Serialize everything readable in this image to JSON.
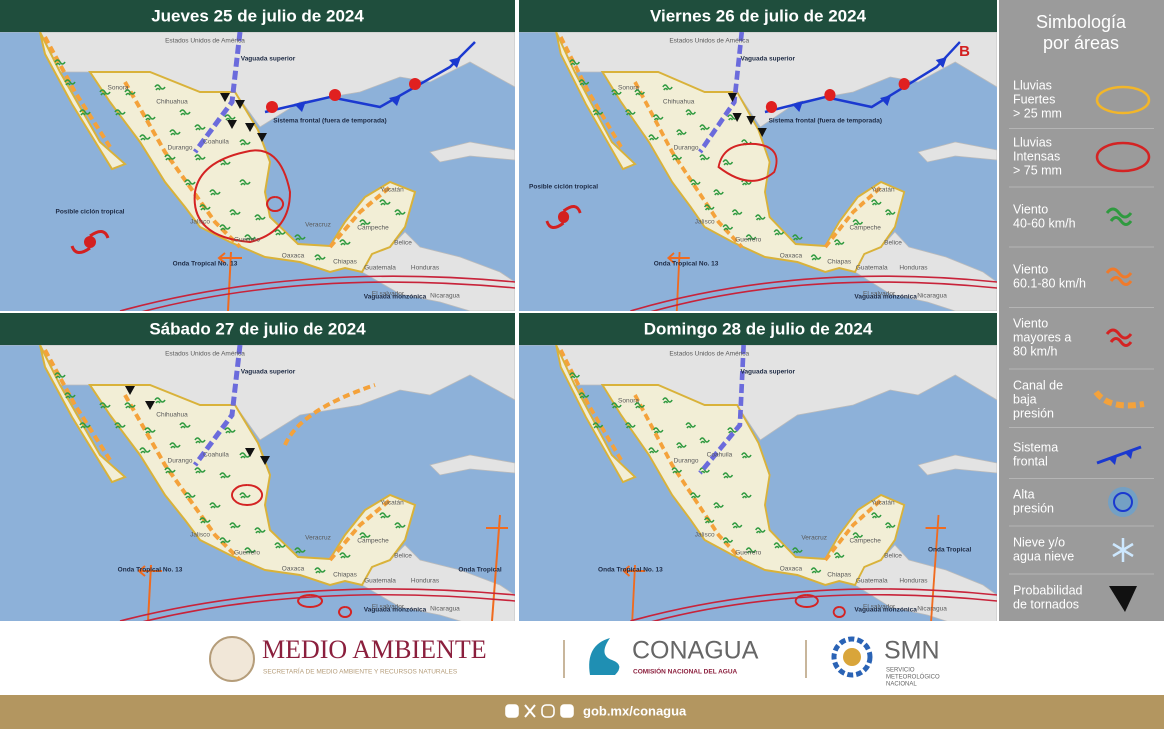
{
  "panels": [
    {
      "title": "Jueves 25 de julio de 2024",
      "labels": {
        "usa": "Estados Unidos de América",
        "vaguada_superior": "Vaguada superior",
        "sistema_frontal": "Sistema frontal (fuera de temporada)",
        "ciclon": "Posible ciclón tropical",
        "onda": "Onda Tropical No. 13",
        "vaguada_monzonica": "Vaguada monzónica",
        "sonora": "Sonora",
        "chihuahua": "Chihuahua",
        "coahuila": "Coahuila",
        "durango": "Durango",
        "jalisco": "Jalisco",
        "guerrero": "Guerrero",
        "oaxaca": "Oaxaca",
        "chiapas": "Chiapas",
        "veracruz": "Veracruz",
        "yucatan": "Yucatán",
        "campeche": "Campeche",
        "belice": "Belice",
        "guatemala": "Guatemala",
        "honduras": "Honduras",
        "el_salvador": "El salvador",
        "nicaragua": "Nicaragua"
      }
    },
    {
      "title": "Viernes 26 de julio de 2024",
      "labels": {
        "usa": "Estados Unidos de América",
        "vaguada_superior": "Vaguada superior",
        "sistema_frontal": "Sistema frontal (fuera de temporada)",
        "ciclon": "Posible ciclón tropical",
        "b": "B",
        "onda": "Onda Tropical No. 13",
        "vaguada_monzonica": "Vaguada monzónica",
        "sonora": "Sonora",
        "chihuahua": "Chihuahua",
        "durango": "Durango",
        "jalisco": "Jalisco",
        "guerrero": "Guerrero",
        "oaxaca": "Oaxaca",
        "chiapas": "Chiapas",
        "yucatan": "Yucatán",
        "campeche": "Campeche",
        "belice": "Belice",
        "guatemala": "Guatemala",
        "honduras": "Honduras",
        "el_salvador": "El salvador",
        "nicaragua": "Nicaragua"
      }
    },
    {
      "title": "Sábado 27 de julio de 2024",
      "labels": {
        "usa": "Estados Unidos de América",
        "vaguada_superior": "Vaguada superior",
        "onda": "Onda Tropical No. 13",
        "onda_east": "Onda Tropical",
        "vaguada_monzonica": "Vaguada monzónica",
        "chihuahua": "Chihuahua",
        "coahuila": "Coahuila",
        "durango": "Durango",
        "jalisco": "Jalisco",
        "guerrero": "Guerrero",
        "oaxaca": "Oaxaca",
        "chiapas": "Chiapas",
        "veracruz": "Veracruz",
        "yucatan": "Yucatán",
        "campeche": "Campeche",
        "belice": "Belice",
        "guatemala": "Guatemala",
        "honduras": "Honduras",
        "el_salvador": "El salvador",
        "nicaragua": "Nicaragua"
      }
    },
    {
      "title": "Domingo 28 de julio de 2024",
      "labels": {
        "usa": "Estados Unidos de América",
        "vaguada_superior": "Vaguada superior",
        "onda": "Onda Tropical No. 13",
        "onda_east": "Onda Tropical",
        "vaguada_monzonica": "Vaguada monzónica",
        "sonora": "Sonora",
        "coahuila": "Coahuila",
        "durango": "Durango",
        "jalisco": "Jalisco",
        "guerrero": "Guerrero",
        "oaxaca": "Oaxaca",
        "chiapas": "Chiapas",
        "veracruz": "Veracruz",
        "yucatan": "Yucatán",
        "campeche": "Campeche",
        "belice": "Belice",
        "guatemala": "Guatemala",
        "honduras": "Honduras",
        "el_salvador": "El salvador",
        "nicaragua": "Nicaragua"
      }
    }
  ],
  "legend": {
    "title": [
      "Simbología",
      "por áreas"
    ],
    "items": [
      [
        "Lluvias",
        "Fuertes",
        "> 25 mm"
      ],
      [
        "Lluvias",
        "Intensas",
        "> 75 mm"
      ],
      [
        "Viento",
        "40-60 km/h"
      ],
      [
        "Viento",
        "60.1-80 km/h"
      ],
      [
        "Viento",
        "mayores a",
        "80 km/h"
      ],
      [
        "Canal de",
        "baja",
        "presión"
      ],
      [
        "Sistema",
        "frontal"
      ],
      [
        "Alta",
        "presión"
      ],
      [
        "Nieve y/o",
        "agua nieve"
      ],
      [
        "Probabilidad",
        "de tornados"
      ]
    ]
  },
  "footer": {
    "semarnat": "MEDIO AMBIENTE",
    "semarnat_sub": "SECRETARÍA DE MEDIO AMBIENTE Y RECURSOS NATURALES",
    "conagua": "CONAGUA",
    "conagua_sub": "COMISIÓN NACIONAL DEL AGUA",
    "smn": "SMN",
    "smn_sub": [
      "SERVICIO",
      "METEOROLÓGICO",
      "NACIONAL"
    ],
    "url": "gob.mx/conagua"
  }
}
